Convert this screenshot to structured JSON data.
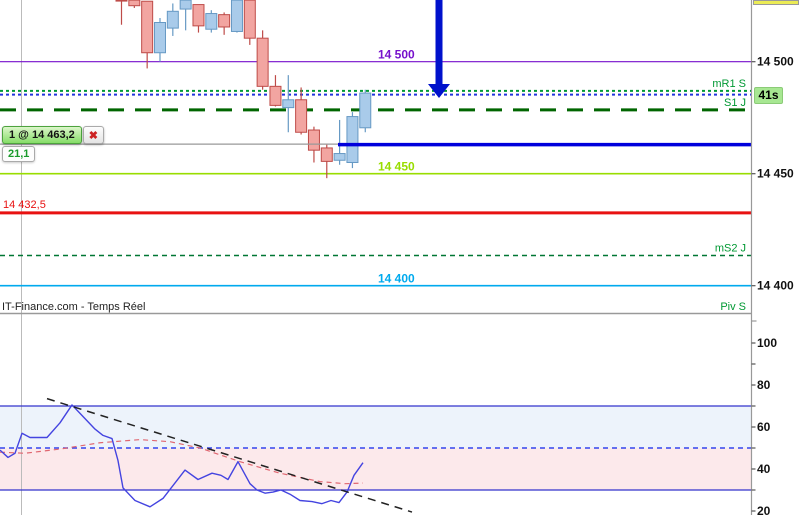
{
  "watermark": {
    "label": "IT-Finance.com - Temps Réel"
  },
  "position_badge": {
    "label": "1 @ 14 463,2",
    "close_label": "✖",
    "pnl": "21,1"
  },
  "countdown": {
    "label": "41s"
  },
  "current_price_marker": {
    "color": "#EBEB55"
  },
  "colors": {
    "bull_fill": "#A9CBEA",
    "bull_stroke": "#6699C4",
    "bear_fill": "#F2A5A1",
    "bear_stroke": "#BE4B48",
    "axis": "#999999",
    "grid": "#BBBBBB",
    "axis_text": "#111111",
    "pivot_text": "#009933",
    "arrow": "#0011CC"
  },
  "chart_data": [
    {
      "type": "candlestick",
      "title": "",
      "y_axis": {
        "tick_labels": [
          "14 500",
          "14 450",
          "14 400"
        ],
        "tick_values": [
          14500,
          14450,
          14400
        ],
        "ylim": [
          14388,
          14527.5
        ]
      },
      "candles": [
        [
          14527.5,
          14527.5,
          14516.5,
          14527.5,
          "d"
        ],
        [
          14527.5,
          14527.5,
          14524,
          14525,
          "d"
        ],
        [
          14527,
          14527,
          14497,
          14504,
          "d"
        ],
        [
          14504,
          14519.5,
          14500,
          14517.5,
          "u"
        ],
        [
          14515,
          14526,
          14511.5,
          14522.5,
          "u"
        ],
        [
          14523.5,
          14527.5,
          14514,
          14527.5,
          "u"
        ],
        [
          14525.5,
          14525.5,
          14513,
          14516,
          "d"
        ],
        [
          14514.5,
          14523,
          14513,
          14521.5,
          "u"
        ],
        [
          14521,
          14522,
          14512,
          14515.5,
          "d"
        ],
        [
          14513.5,
          14527.5,
          14513,
          14527.5,
          "u"
        ],
        [
          14527.5,
          14527.5,
          14507.5,
          14510.5,
          "d"
        ],
        [
          14510.5,
          14514,
          14487.5,
          14489,
          "d"
        ],
        [
          14489,
          14494,
          14480,
          14480.5,
          "d"
        ],
        [
          14479.5,
          14494,
          14468.5,
          14483,
          "u"
        ],
        [
          14483,
          14488.5,
          14467.5,
          14468.5,
          "d"
        ],
        [
          14469.5,
          14471,
          14455,
          14460.5,
          "d"
        ],
        [
          14461.5,
          14463,
          14448,
          14455.5,
          "d"
        ],
        [
          14456,
          14474,
          14454,
          14459,
          "u"
        ],
        [
          14455,
          14477.5,
          14452.5,
          14475.5,
          "u"
        ],
        [
          14470.5,
          14487.5,
          14468.5,
          14486,
          "u"
        ]
      ],
      "levels": [
        {
          "price": 14500,
          "color": "#7711CC",
          "style": "solid",
          "w": 1.2,
          "chart_label": "14 500",
          "axis_label": "14 500"
        },
        {
          "price": 14487,
          "color": "#009933",
          "style": "dot",
          "w": 2,
          "pivot": "mR1 S"
        },
        {
          "price": 14485.3,
          "color": "#2233DD",
          "style": "dot",
          "w": 2
        },
        {
          "price": 14478.5,
          "color": "#006600",
          "style": "longdash",
          "w": 3,
          "pivot": "S1 J"
        },
        {
          "price": 14450,
          "color": "#99DD00",
          "style": "solid",
          "w": 1.6,
          "chart_label": "14 450",
          "axis_label": "14 450"
        },
        {
          "price": 14432.5,
          "color": "#E81111",
          "style": "solid",
          "w": 3,
          "left_label": "14 432,5"
        },
        {
          "price": 14413.5,
          "color": "#007733",
          "style": "dash",
          "w": 1.5,
          "pivot": "mS2 J"
        },
        {
          "price": 14400,
          "color": "#00AAEE",
          "style": "solid",
          "w": 1.6,
          "chart_label": "14 400",
          "axis_label": "14 400"
        },
        {
          "pivot": "Piv S",
          "style": "none",
          "label_y": 301
        }
      ],
      "position_lines": [
        {
          "name": "entry-line",
          "price": 14463.2,
          "color": "#999999",
          "w": 1.2,
          "x1": 0,
          "x2": 338
        },
        {
          "name": "current-price-line",
          "price": 14463,
          "color": "#0000DC",
          "w": 3.5,
          "x1": 338,
          "x2": 751.5
        }
      ],
      "annotations": [
        {
          "type": "arrow-down",
          "color": "#0011CC",
          "x": 439,
          "stem_top": 0,
          "stem_w": 7,
          "head_y": 84,
          "tip_y": 98,
          "head_w": 22
        }
      ]
    },
    {
      "type": "line",
      "title": "",
      "y_axis": {
        "ticks": [
          100,
          80,
          60,
          40,
          20
        ],
        "minor_step": 10,
        "ylim": [
          18,
          106
        ]
      },
      "bands": [
        {
          "from": 50,
          "to": 70,
          "fill": "#EDF3FB"
        },
        {
          "from": 30,
          "to": 50,
          "fill": "#FCE9EB"
        }
      ],
      "levels": [
        {
          "value": 70,
          "style": "solid",
          "color": "#3333CC",
          "w": 1.2
        },
        {
          "value": 50,
          "style": "dash",
          "color": "#3344EE",
          "w": 1.4
        },
        {
          "value": 30,
          "style": "solid",
          "color": "#3333CC",
          "w": 1.2
        }
      ],
      "series": [
        {
          "name": "signal",
          "color": "#E06670",
          "style": "dash",
          "w": 1.2,
          "points": [
            [
              0,
              48
            ],
            [
              25,
              47.5
            ],
            [
              60,
              49.5
            ],
            [
              100,
              52.5
            ],
            [
              140,
              54
            ],
            [
              170,
              53
            ],
            [
              200,
              50
            ],
            [
              240,
              43.5
            ],
            [
              280,
              38
            ],
            [
              320,
              34
            ],
            [
              345,
              33
            ],
            [
              363,
              33.3
            ]
          ]
        },
        {
          "name": "rsi",
          "color": "#4444E0",
          "style": "solid",
          "w": 1.4,
          "points": [
            [
              0,
              49
            ],
            [
              8,
              45.5
            ],
            [
              15,
              47.5
            ],
            [
              22,
              57
            ],
            [
              30,
              55
            ],
            [
              47,
              55
            ],
            [
              60,
              62
            ],
            [
              72,
              70.5
            ],
            [
              83,
              65
            ],
            [
              95,
              59
            ],
            [
              103,
              56
            ],
            [
              112,
              54.5
            ],
            [
              118,
              44
            ],
            [
              123,
              31
            ],
            [
              135,
              25
            ],
            [
              150,
              22
            ],
            [
              163,
              26
            ],
            [
              185,
              39.5
            ],
            [
              198,
              35
            ],
            [
              212,
              38
            ],
            [
              221,
              37
            ],
            [
              228,
              35
            ],
            [
              238,
              43.5
            ],
            [
              250,
              33
            ],
            [
              257,
              30
            ],
            [
              265,
              28.5
            ],
            [
              273,
              29
            ],
            [
              281,
              30
            ],
            [
              290,
              28
            ],
            [
              300,
              25
            ],
            [
              312,
              24.5
            ],
            [
              322,
              23.5
            ],
            [
              331,
              25
            ],
            [
              339,
              24
            ],
            [
              347,
              29
            ],
            [
              354,
              37
            ],
            [
              363,
              43
            ]
          ]
        },
        {
          "name": "trendline",
          "color": "#222222",
          "style": "dash",
          "w": 1.5,
          "points": [
            [
              47,
              73.5
            ],
            [
              412,
              19.5
            ]
          ]
        }
      ]
    }
  ]
}
